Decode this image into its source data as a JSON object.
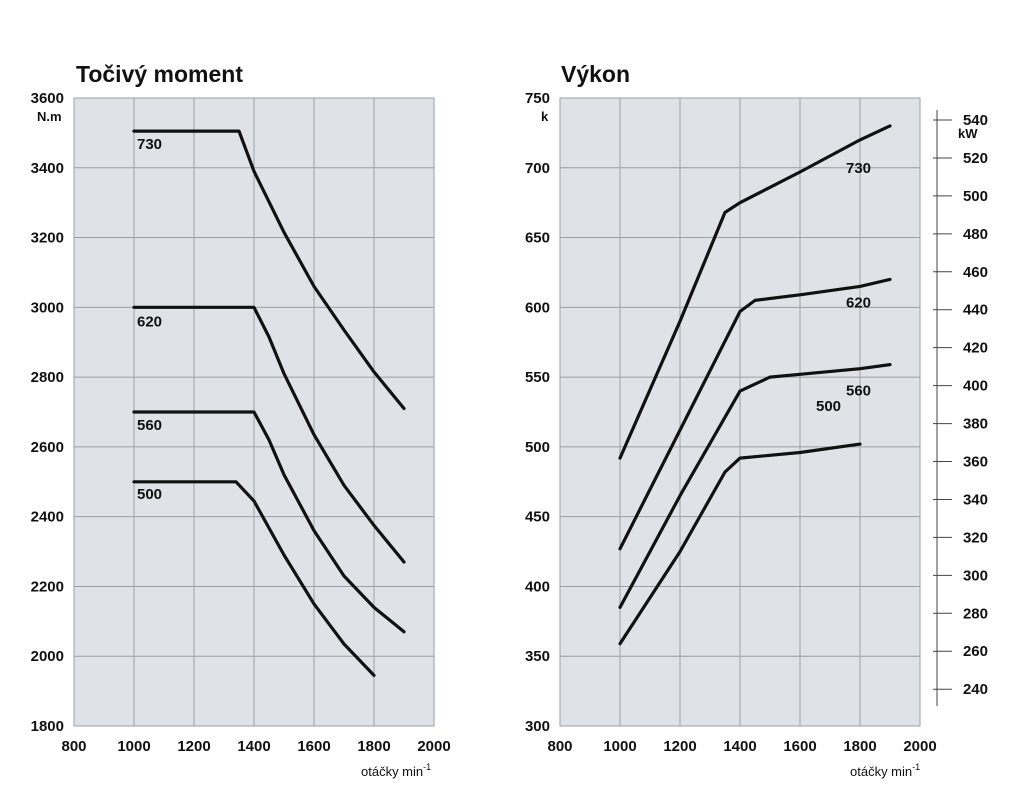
{
  "chart_data": [
    {
      "type": "line",
      "title": "Točivý moment",
      "ylabel": "N.m",
      "xlabel_main": "otáčky min",
      "xlabel_sup": "-1",
      "xlim": [
        800,
        2000
      ],
      "ylim": [
        1800,
        3600
      ],
      "xticks": [
        "800",
        "1000",
        "1200",
        "1400",
        "1600",
        "1800",
        "2000"
      ],
      "yticks": [
        "1800",
        "2000",
        "2200",
        "2400",
        "2600",
        "2800",
        "3000",
        "3200",
        "3400",
        "3600"
      ],
      "grid": true,
      "series": [
        {
          "name": "730",
          "x": [
            1000,
            1350,
            1400,
            1500,
            1600,
            1700,
            1800,
            1900
          ],
          "y": [
            3505,
            3505,
            3390,
            3215,
            3060,
            2935,
            2815,
            2710
          ]
        },
        {
          "name": "620",
          "x": [
            1000,
            1400,
            1450,
            1500,
            1600,
            1700,
            1800,
            1900
          ],
          "y": [
            3000,
            3000,
            2915,
            2810,
            2635,
            2490,
            2375,
            2270
          ]
        },
        {
          "name": "560",
          "x": [
            1000,
            1400,
            1450,
            1500,
            1600,
            1700,
            1800,
            1900
          ],
          "y": [
            2700,
            2700,
            2620,
            2520,
            2360,
            2230,
            2140,
            2070
          ]
        },
        {
          "name": "500",
          "x": [
            1000,
            1340,
            1400,
            1500,
            1600,
            1700,
            1800
          ],
          "y": [
            2500,
            2500,
            2445,
            2290,
            2150,
            2035,
            1945
          ]
        }
      ]
    },
    {
      "type": "line",
      "title": "Výkon",
      "ylabel": "k",
      "y2label": "kW",
      "xlabel_main": "otáčky min",
      "xlabel_sup": "-1",
      "xlim": [
        800,
        2000
      ],
      "ylim": [
        300,
        750
      ],
      "y2lim": [
        220.6,
        551.6
      ],
      "xticks": [
        "800",
        "1000",
        "1200",
        "1400",
        "1600",
        "1800",
        "2000"
      ],
      "yticks": [
        "300",
        "350",
        "400",
        "450",
        "500",
        "550",
        "600",
        "650",
        "700",
        "750"
      ],
      "y2ticks": [
        "240",
        "260",
        "280",
        "300",
        "320",
        "340",
        "360",
        "380",
        "400",
        "420",
        "440",
        "460",
        "480",
        "500",
        "520",
        "540"
      ],
      "grid": true,
      "series": [
        {
          "name": "730",
          "x": [
            1000,
            1200,
            1350,
            1400,
            1600,
            1800,
            1900
          ],
          "y": [
            492,
            590,
            668,
            675,
            697,
            720,
            730
          ]
        },
        {
          "name": "620",
          "x": [
            1000,
            1200,
            1400,
            1450,
            1600,
            1800,
            1900
          ],
          "y": [
            427,
            512,
            597,
            605,
            609,
            615,
            620
          ]
        },
        {
          "name": "560",
          "x": [
            1000,
            1200,
            1400,
            1450,
            1500,
            1600,
            1800,
            1900
          ],
          "y": [
            385,
            465,
            540,
            545,
            550,
            552,
            556,
            559
          ]
        },
        {
          "name": "500",
          "x": [
            1000,
            1200,
            1350,
            1400,
            1600,
            1800
          ],
          "y": [
            359,
            425,
            482,
            492,
            496,
            502
          ]
        }
      ]
    }
  ]
}
